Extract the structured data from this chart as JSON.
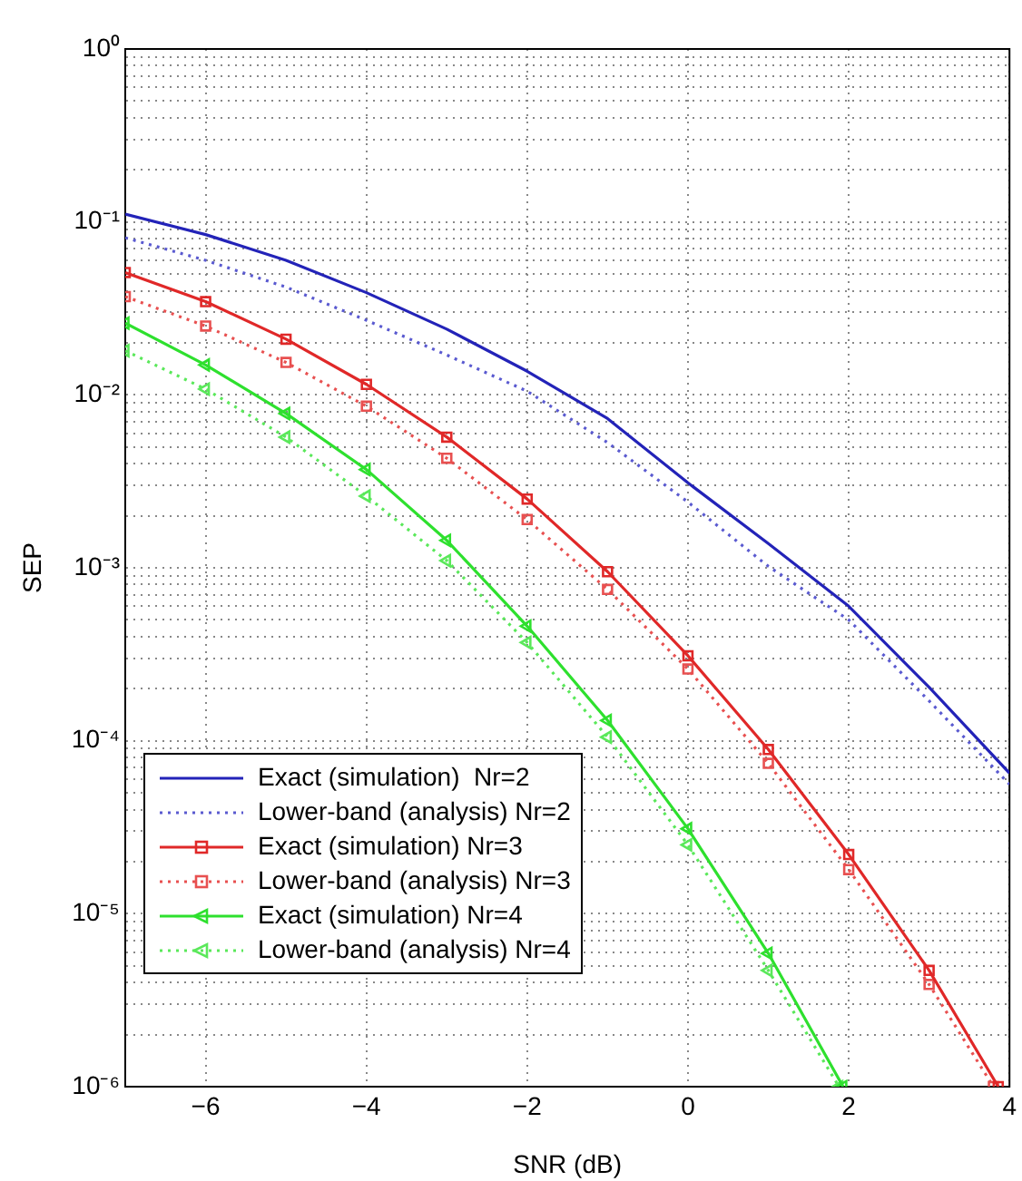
{
  "chart_data": {
    "type": "line",
    "xlabel": "SNR (dB)",
    "ylabel": "SEP",
    "log": "y",
    "grid": true,
    "legend": "bottom left",
    "xlim": [
      -7,
      4
    ],
    "xticks": [
      -6,
      -4,
      -2,
      0,
      2,
      4
    ],
    "ylim": [
      1e-06,
      1
    ],
    "yticks": [
      {
        "value": 1,
        "label": "10⁰"
      },
      {
        "value": 0.1,
        "label": "10⁻¹"
      },
      {
        "value": 0.01,
        "label": "10⁻²"
      },
      {
        "value": 0.001,
        "label": "10⁻³"
      },
      {
        "value": 0.0001,
        "label": "10⁻⁴"
      },
      {
        "value": 1e-05,
        "label": "10⁻⁵"
      },
      {
        "value": 1e-06,
        "label": "10⁻⁶"
      },
      {
        "value": 0.9,
        "label": null
      },
      {
        "value": 0.8,
        "label": null
      },
      {
        "value": 0.7,
        "label": null
      },
      {
        "value": 0.6,
        "label": null
      },
      {
        "value": 0.5,
        "label": null
      },
      {
        "value": 0.4,
        "label": null
      },
      {
        "value": 0.3,
        "label": null
      },
      {
        "value": 0.2,
        "label": null
      },
      {
        "value": 0.09,
        "label": null
      },
      {
        "value": 0.08,
        "label": null
      },
      {
        "value": 0.07,
        "label": null
      },
      {
        "value": 0.06,
        "label": null
      },
      {
        "value": 0.05,
        "label": null
      },
      {
        "value": 0.04,
        "label": null
      },
      {
        "value": 0.03,
        "label": null
      },
      {
        "value": 0.02,
        "label": null
      },
      {
        "value": 0.009,
        "label": null
      },
      {
        "value": 0.008,
        "label": null
      },
      {
        "value": 0.007,
        "label": null
      },
      {
        "value": 0.006,
        "label": null
      },
      {
        "value": 0.005,
        "label": null
      },
      {
        "value": 0.004,
        "label": null
      },
      {
        "value": 0.003,
        "label": null
      },
      {
        "value": 0.002,
        "label": null
      },
      {
        "value": 0.0009,
        "label": null
      },
      {
        "value": 0.0008,
        "label": null
      },
      {
        "value": 0.0007,
        "label": null
      },
      {
        "value": 0.0006,
        "label": null
      },
      {
        "value": 0.0005,
        "label": null
      },
      {
        "value": 0.0004,
        "label": null
      },
      {
        "value": 0.0003,
        "label": null
      },
      {
        "value": 0.0002,
        "label": null
      },
      {
        "value": 9e-05,
        "label": null
      },
      {
        "value": 8e-05,
        "label": null
      },
      {
        "value": 7e-05,
        "label": null
      },
      {
        "value": 6e-05,
        "label": null
      },
      {
        "value": 5e-05,
        "label": null
      },
      {
        "value": 4e-05,
        "label": null
      },
      {
        "value": 3e-05,
        "label": null
      },
      {
        "value": 2e-05,
        "label": null
      },
      {
        "value": 9e-06,
        "label": null
      },
      {
        "value": 8e-06,
        "label": null
      },
      {
        "value": 7e-06,
        "label": null
      },
      {
        "value": 6e-06,
        "label": null
      },
      {
        "value": 5e-06,
        "label": null
      },
      {
        "value": 4e-06,
        "label": null
      },
      {
        "value": 3e-06,
        "label": null
      },
      {
        "value": 2e-06,
        "label": null
      }
    ],
    "series": [
      {
        "name": "Exact (simulation)  Nr=2",
        "color": "#2323b8",
        "line_style": "solid",
        "marker": "none",
        "x": [
          -7,
          -6,
          -5,
          -4,
          -3,
          -2,
          -1,
          0,
          1,
          2,
          3,
          4
        ],
        "values": [
          0.111,
          0.0845,
          0.06,
          0.039,
          0.024,
          0.0137,
          0.0073,
          0.0031,
          0.00138,
          0.0006,
          0.000204,
          6.5e-05
        ]
      },
      {
        "name": "Lower-band (analysis) Nr=2",
        "color": "#5a5ad0",
        "line_style": "dotted",
        "marker": "none",
        "x": [
          -7,
          -6,
          -5,
          -4,
          -3,
          -2,
          -1,
          0,
          1,
          2,
          3,
          4
        ],
        "values": [
          0.081,
          0.06,
          0.042,
          0.027,
          0.017,
          0.0105,
          0.0053,
          0.0024,
          0.00102,
          0.0005,
          0.00017,
          5.6e-05
        ]
      },
      {
        "name": "Exact (simulation) Nr=3",
        "color": "#e02828",
        "line_style": "solid",
        "marker": "square",
        "x": [
          -7,
          -6,
          -5,
          -4,
          -3,
          -2,
          -1,
          0,
          1,
          2,
          3,
          3.86
        ],
        "values": [
          0.051,
          0.0346,
          0.021,
          0.0115,
          0.0057,
          0.0025,
          0.00095,
          0.00031,
          8.9e-05,
          2.2e-05,
          4.7e-06,
          1e-06
        ]
      },
      {
        "name": "Lower-band (analysis) Nr=3",
        "color": "#e85050",
        "line_style": "dotted",
        "marker": "square",
        "x": [
          -7,
          -6,
          -5,
          -4,
          -3,
          -2,
          -1,
          0,
          1,
          2,
          3,
          3.8
        ],
        "values": [
          0.037,
          0.025,
          0.0154,
          0.0086,
          0.0043,
          0.0019,
          0.00075,
          0.00026,
          7.4e-05,
          1.8e-05,
          3.9e-06,
          1e-06
        ]
      },
      {
        "name": "Exact (simulation) Nr=4",
        "color": "#2ee02e",
        "line_style": "solid",
        "marker": "triangle",
        "x": [
          -7,
          -6,
          -5,
          -4,
          -3,
          -2,
          -1,
          0,
          1,
          1.93
        ],
        "values": [
          0.026,
          0.0149,
          0.0078,
          0.0037,
          0.00144,
          0.00046,
          0.000131,
          3.1e-05,
          5.9e-06,
          1e-06
        ]
      },
      {
        "name": "Lower-band (analysis) Nr=4",
        "color": "#5ae85a",
        "line_style": "dotted",
        "marker": "triangle",
        "x": [
          -7,
          -6,
          -5,
          -4,
          -3,
          -2,
          -1,
          0,
          1,
          1.88
        ],
        "values": [
          0.018,
          0.0108,
          0.0057,
          0.0026,
          0.0011,
          0.00037,
          0.000105,
          2.5e-05,
          4.7e-06,
          1e-06
        ]
      }
    ]
  }
}
